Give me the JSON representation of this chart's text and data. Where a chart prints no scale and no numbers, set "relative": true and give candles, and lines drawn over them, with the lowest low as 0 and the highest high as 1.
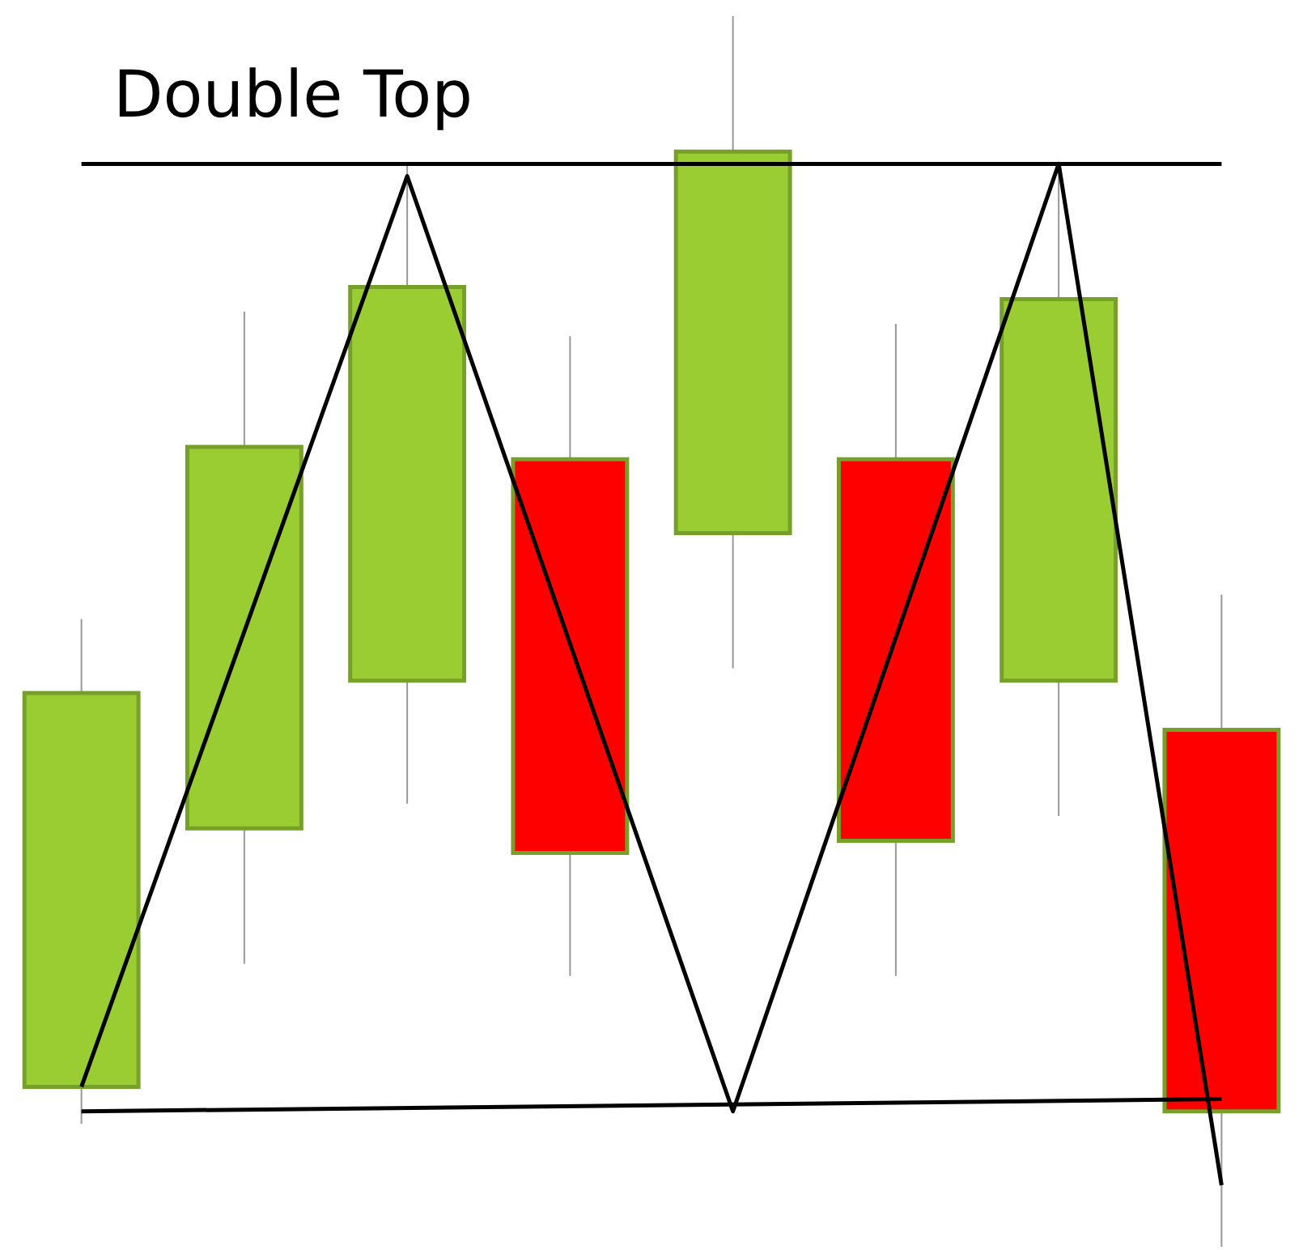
{
  "chart_data": {
    "type": "candlestick",
    "title": "Double Top",
    "relative": true,
    "tick_labels": false,
    "categories": [
      null,
      null,
      null,
      null,
      null,
      null,
      null,
      null
    ],
    "ohlc": [
      [
        0.13,
        0.51,
        0.1,
        0.45
      ],
      [
        0.34,
        0.76,
        0.23,
        0.65
      ],
      [
        0.46,
        0.88,
        0.36,
        0.78
      ],
      [
        0.64,
        0.74,
        0.22,
        0.32
      ],
      [
        0.58,
        1,
        0.47,
        0.89
      ],
      [
        0.64,
        0.75,
        0.22,
        0.33
      ],
      [
        0.46,
        0.88,
        0.35,
        0.77
      ],
      [
        0.42,
        0.53,
        0,
        0.11
      ]
    ],
    "colors": [
      "#9acd32",
      "#9acd32",
      "#9acd32",
      "#ff0000",
      "#9acd32",
      "#ff0000",
      "#9acd32",
      "#ff0000"
    ],
    "series": [
      {
        "type": "line",
        "color": "#000000",
        "values": [
          0.88,
          null,
          null,
          null,
          null,
          null,
          null,
          0.88
        ]
      },
      {
        "type": "line",
        "color": "#000000",
        "values": [
          0.11,
          null,
          null,
          null,
          null,
          null,
          null,
          0.12
        ]
      },
      {
        "type": "line",
        "color": "#000000",
        "values": [
          0.13,
          null,
          0.87,
          null,
          0.11,
          null,
          0.88,
          0.05
        ]
      }
    ]
  }
}
